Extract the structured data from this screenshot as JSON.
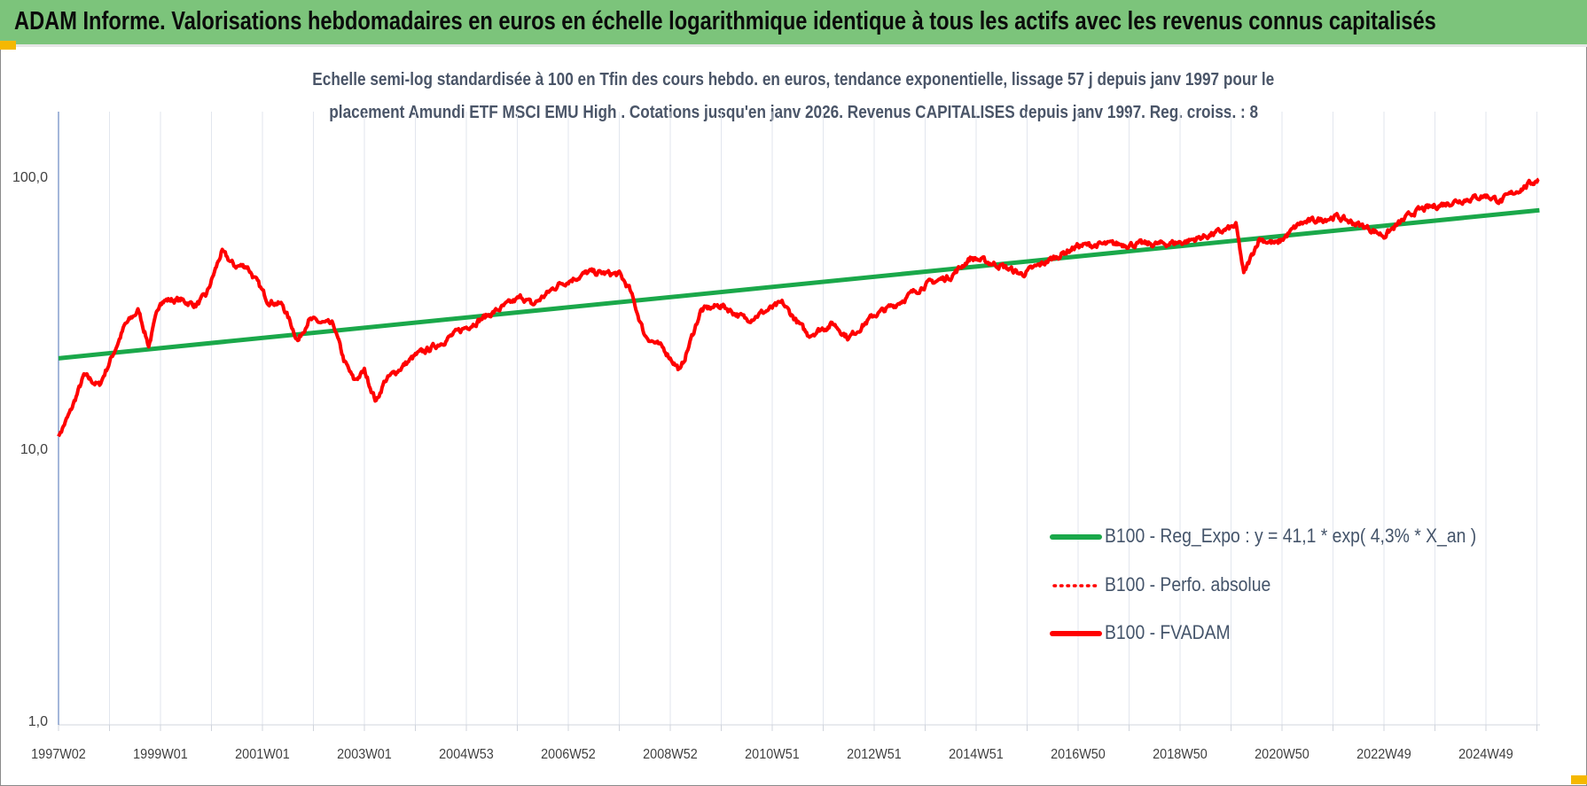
{
  "header": {
    "title": "ADAM Informe. Valorisations hebdomadaires en euros en échelle logarithmique identique à tous les actifs avec les revenus connus capitalisés"
  },
  "colors": {
    "header_bg": "#7cc47b",
    "regression": "#1aa84a",
    "fvadam": "#ff0000",
    "perfo": "#ff0000",
    "corner": "#f5b800"
  },
  "chart_data": {
    "type": "line",
    "title_lines": [
      "Echelle semi-log standardisée à 100 en Tfin des cours hebdo. en euros, tendance exponentielle, lissage 57 j depuis janv 1997 pour le",
      "placement Amundi ETF MSCI EMU High . Cotations jusqu'en janv 2026. Revenus CAPITALISES depuis janv 1997. Reg. croiss. : 8"
    ],
    "yscale": "log",
    "ylim": [
      1,
      177
    ],
    "y_ticks": [
      "1,0",
      "10,0",
      "100,0"
    ],
    "y_tick_values": [
      1,
      10,
      100
    ],
    "x_range_years": [
      1997.0,
      2026.05
    ],
    "x_tick_labels": [
      "1997W02",
      "1999W01",
      "2001W01",
      "2003W01",
      "2004W53",
      "2006W52",
      "2008W52",
      "2010W51",
      "2012W51",
      "2014W51",
      "2016W50",
      "2018W50",
      "2020W50",
      "2022W49",
      "2024W49"
    ],
    "grid": "vertical",
    "legend_position": "bottom-right",
    "legend": [
      {
        "label": "B100 - Reg_Expo : y = 41,1 * exp( 4,3% *  X_an )",
        "style": "solid-green"
      },
      {
        "label": "B100 - Perfo. absolue",
        "style": "dotted-red"
      },
      {
        "label": "B100 - FVADAM",
        "style": "solid-red"
      }
    ],
    "regression": {
      "a": 41.1,
      "rate": 0.043,
      "center_year": 2011.5
    },
    "fvadam_points": [
      [
        1997.0,
        11.4
      ],
      [
        1997.24,
        14.1
      ],
      [
        1997.5,
        19
      ],
      [
        1997.8,
        17.5
      ],
      [
        1998.1,
        23.5
      ],
      [
        1998.3,
        29
      ],
      [
        1998.57,
        33
      ],
      [
        1998.77,
        24.5
      ],
      [
        1999.0,
        36
      ],
      [
        1999.4,
        36
      ],
      [
        1999.7,
        34.5
      ],
      [
        1999.9,
        37.5
      ],
      [
        2000.2,
        54
      ],
      [
        2000.45,
        48
      ],
      [
        2000.7,
        48
      ],
      [
        2001.1,
        36
      ],
      [
        2001.4,
        34.5
      ],
      [
        2001.7,
        25.5
      ],
      [
        2001.9,
        30.5
      ],
      [
        2002.4,
        29
      ],
      [
        2002.6,
        21.6
      ],
      [
        2002.8,
        18.2
      ],
      [
        2003.0,
        19.8
      ],
      [
        2003.23,
        15.3
      ],
      [
        2003.4,
        18.2
      ],
      [
        2004.0,
        22.5
      ],
      [
        2004.4,
        24.5
      ],
      [
        2005.0,
        28.7
      ],
      [
        2005.6,
        33
      ],
      [
        2006.1,
        37
      ],
      [
        2006.3,
        34.5
      ],
      [
        2006.8,
        41
      ],
      [
        2007.4,
        45.5
      ],
      [
        2008.0,
        44.7
      ],
      [
        2008.2,
        39.5
      ],
      [
        2008.5,
        26.8
      ],
      [
        2008.9,
        23.5
      ],
      [
        2009.2,
        19.8
      ],
      [
        2009.6,
        33
      ],
      [
        2010.0,
        34.5
      ],
      [
        2010.5,
        30.5
      ],
      [
        2011.2,
        35
      ],
      [
        2011.7,
        26.8
      ],
      [
        2012.2,
        29.5
      ],
      [
        2012.5,
        26.2
      ],
      [
        2013.0,
        31.7
      ],
      [
        2013.4,
        34.5
      ],
      [
        2014.0,
        41
      ],
      [
        2014.5,
        44
      ],
      [
        2014.9,
        51.5
      ],
      [
        2015.5,
        48
      ],
      [
        2015.9,
        44.7
      ],
      [
        2016.4,
        50
      ],
      [
        2017.0,
        57
      ],
      [
        2017.8,
        57.7
      ],
      [
        2018.6,
        57.7
      ],
      [
        2019.1,
        58.9
      ],
      [
        2019.8,
        64
      ],
      [
        2020.1,
        67.4
      ],
      [
        2020.25,
        44.7
      ],
      [
        2020.55,
        60.5
      ],
      [
        2020.9,
        57.7
      ],
      [
        2021.35,
        68.6
      ],
      [
        2022.05,
        72.9
      ],
      [
        2022.7,
        66
      ],
      [
        2023.0,
        62
      ],
      [
        2023.6,
        76
      ],
      [
        2024.4,
        83
      ],
      [
        2025.0,
        87
      ],
      [
        2025.3,
        83
      ],
      [
        2025.6,
        90.5
      ],
      [
        2026.05,
        100
      ]
    ]
  }
}
